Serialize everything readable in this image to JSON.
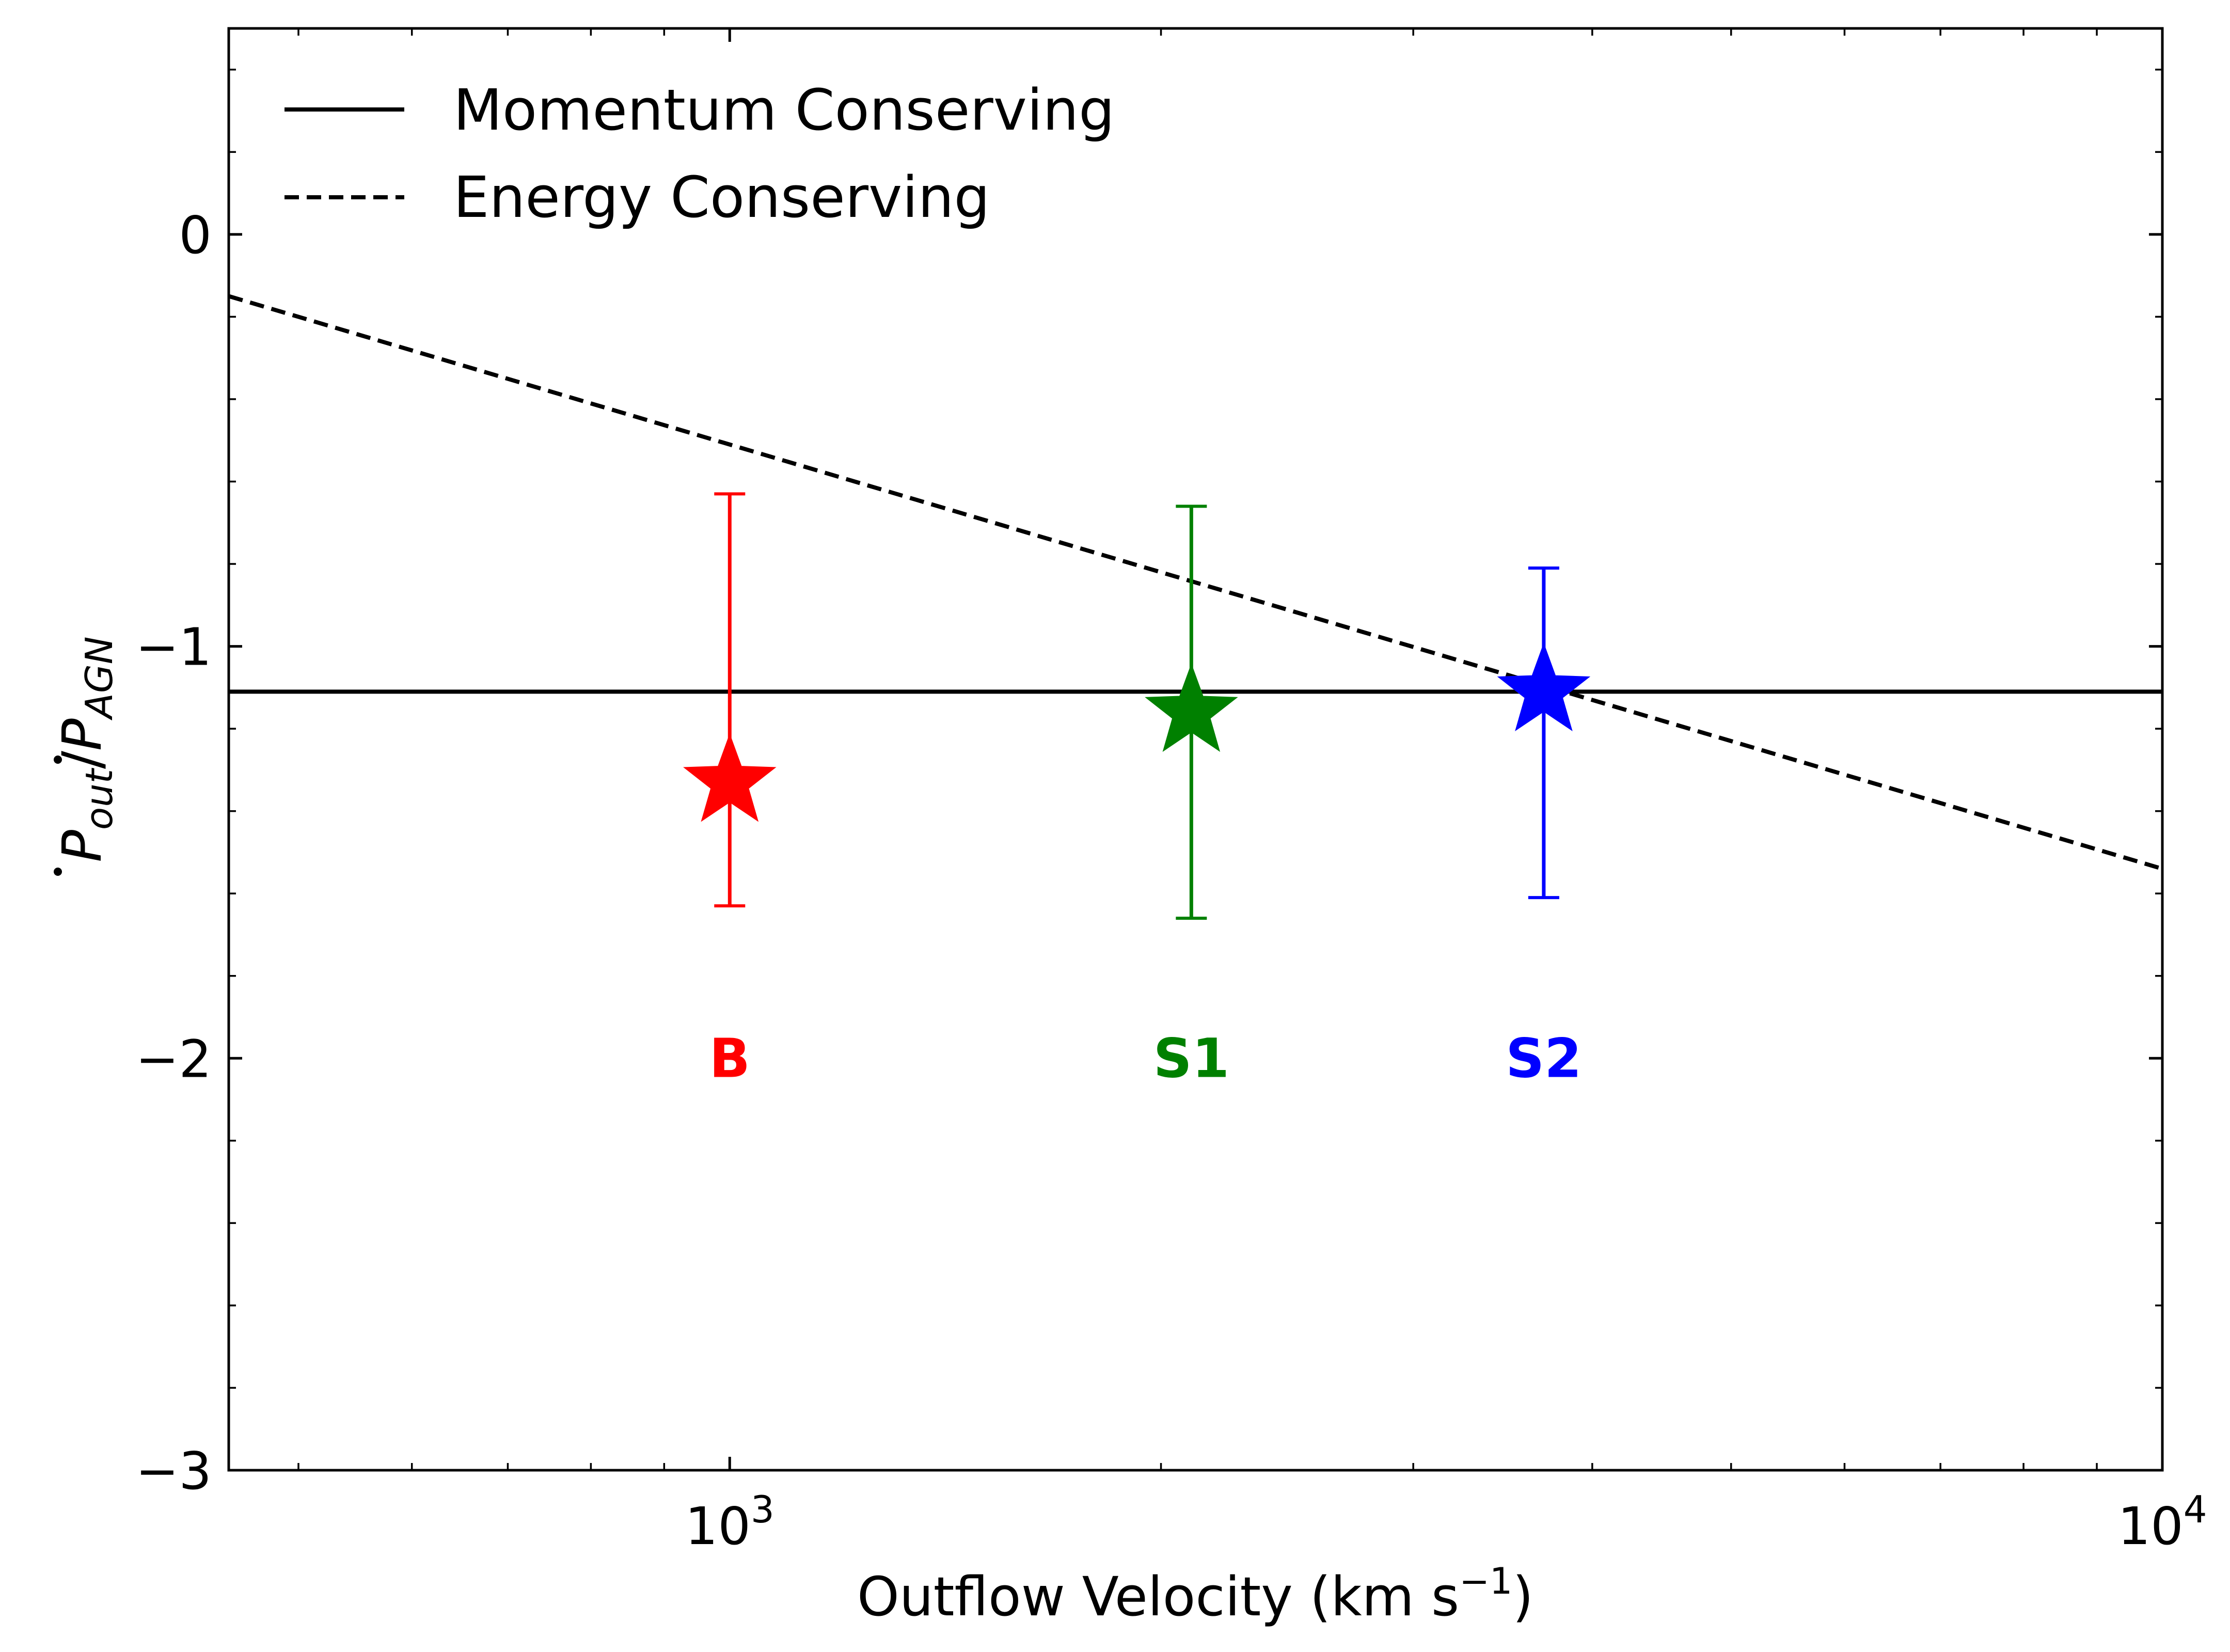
{
  "chart_data": {
    "type": "scatter",
    "xlabel": "Outflow Velocity (km s",
    "xlabel_exponent": "−1",
    "xlabel_close": ")",
    "ylabel": "Ṗout/ṖAGN",
    "ylabel_parts": {
      "p1": "P",
      "sub1": "out",
      "slash": "/",
      "p2": "P",
      "sub2": "AGN"
    },
    "x_scale": "log",
    "xlim": [
      447,
      10000
    ],
    "ylim": [
      -3,
      0.5
    ],
    "x_ticks": [
      {
        "value": 1000,
        "base": "10",
        "exp": "3"
      },
      {
        "value": 10000,
        "base": "10",
        "exp": "4"
      }
    ],
    "y_ticks": [
      {
        "value": 0,
        "label": "0"
      },
      {
        "value": -1,
        "label": "−1"
      },
      {
        "value": -2,
        "label": "−2"
      },
      {
        "value": -3,
        "label": "−3"
      }
    ],
    "grid": false,
    "legend_position": "top-left",
    "lines": [
      {
        "name": "Momentum Conserving",
        "style": "solid",
        "color": "#000000",
        "points": [
          [
            447,
            -1.11
          ],
          [
            10000,
            -1.11
          ]
        ]
      },
      {
        "name": "Energy Conserving",
        "style": "dashed",
        "color": "#000000",
        "points": [
          [
            447,
            -0.15
          ],
          [
            10000,
            -1.54
          ]
        ]
      }
    ],
    "points": [
      {
        "label": "B",
        "x": 1000,
        "y": -1.33,
        "yerr_low": -1.63,
        "yerr_high": -0.63,
        "color": "#ff0000",
        "label_y": -2.0
      },
      {
        "label": "S1",
        "x": 2100,
        "y": -1.16,
        "yerr_low": -1.66,
        "yerr_high": -0.66,
        "color": "#008000",
        "label_y": -2.0
      },
      {
        "label": "S2",
        "x": 3700,
        "y": -1.11,
        "yerr_low": -1.61,
        "yerr_high": -0.81,
        "color": "#0000ff",
        "label_y": -2.0
      }
    ]
  }
}
